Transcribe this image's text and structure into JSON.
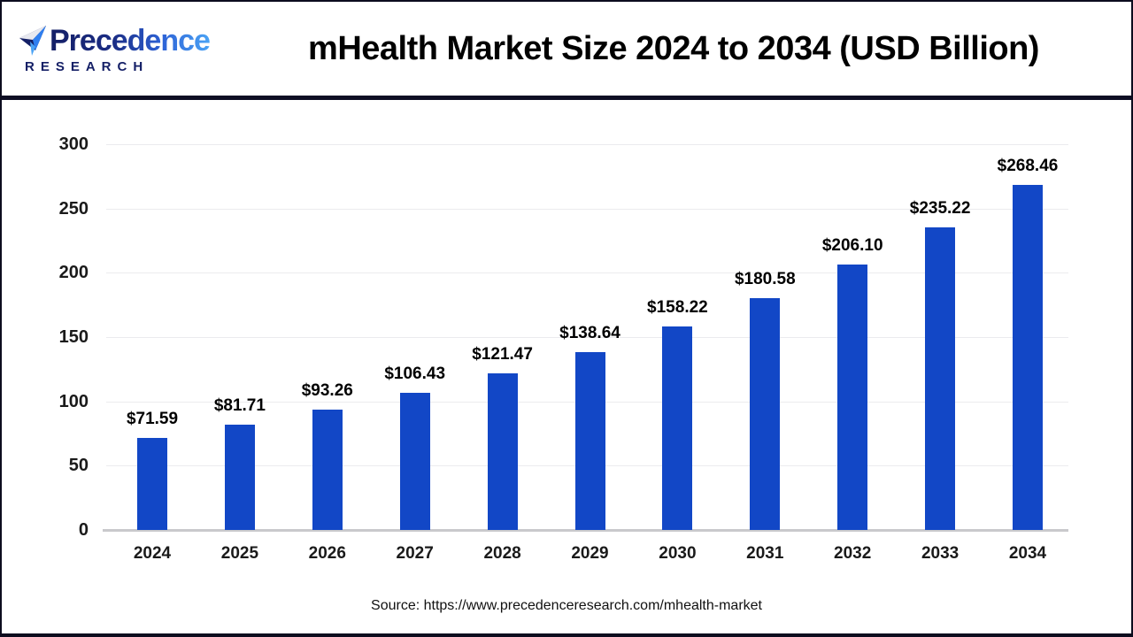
{
  "header": {
    "logo": {
      "name": "Precedence",
      "subtitle": "RESEARCH"
    },
    "title": "mHealth Market Size 2024 to 2034 (USD Billion)"
  },
  "chart_data": {
    "type": "bar",
    "title": "mHealth Market Size 2024 to 2034 (USD Billion)",
    "unit": "USD Billion",
    "categories": [
      "2024",
      "2025",
      "2026",
      "2027",
      "2028",
      "2029",
      "2030",
      "2031",
      "2032",
      "2033",
      "2034"
    ],
    "values": [
      71.59,
      81.71,
      93.26,
      106.43,
      121.47,
      138.64,
      158.22,
      180.58,
      206.1,
      235.22,
      268.46
    ],
    "data_labels": [
      "$71.59",
      "$81.71",
      "$93.26",
      "$106.43",
      "$121.47",
      "$138.64",
      "$158.22",
      "$180.58",
      "$206.10",
      "$235.22",
      "$268.46"
    ],
    "ylim": [
      0,
      300
    ],
    "yticks": [
      0,
      50,
      100,
      150,
      200,
      250,
      300
    ],
    "grid": true,
    "legend": false,
    "bar_color": "#1247c6"
  },
  "footer": {
    "source": "Source: https://www.precedenceresearch.com/mhealth-market"
  },
  "colors": {
    "bar": "#1247c6",
    "grid": "#ebebee",
    "axis_line": "#c9c9cc",
    "separator": "#0e0e24",
    "logo_navy": "#141f66",
    "logo_blue": "#3b8df2",
    "title_text": "#000000"
  }
}
